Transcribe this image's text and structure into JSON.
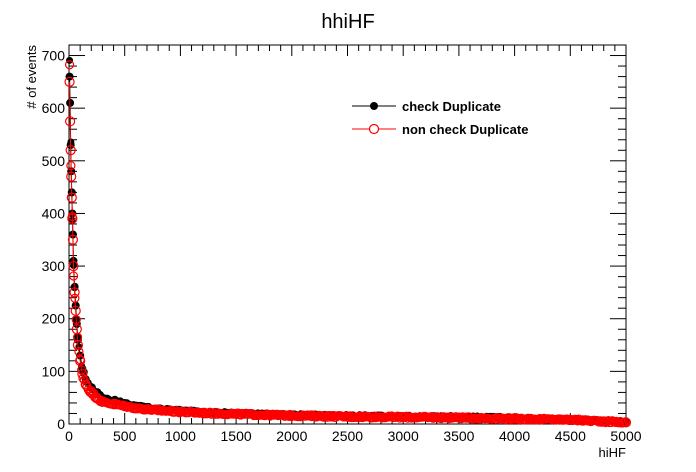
{
  "chart_data": {
    "type": "scatter",
    "title": "hhiHF",
    "xlabel": "hiHF",
    "ylabel": "# of events",
    "xlim": [
      0,
      5000
    ],
    "ylim": [
      0,
      720
    ],
    "xticks": [
      0,
      500,
      1000,
      1500,
      2000,
      2500,
      3000,
      3500,
      4000,
      4500,
      5000
    ],
    "yticks": [
      0,
      100,
      200,
      300,
      400,
      500,
      600,
      700
    ],
    "legend_position": "top-right",
    "grid": false,
    "series": [
      {
        "name": "check Duplicate",
        "color": "#000000",
        "marker": "filled-circle",
        "x": [
          5,
          10,
          15,
          20,
          25,
          30,
          35,
          40,
          50,
          60,
          70,
          80,
          100,
          120,
          150,
          200,
          250,
          300,
          400,
          500,
          600,
          700,
          800,
          1000,
          1200,
          1500,
          1800,
          2000,
          2500,
          3000,
          3500,
          4000,
          4500,
          4800,
          5000
        ],
        "values": [
          660,
          610,
          530,
          480,
          440,
          400,
          360,
          310,
          260,
          225,
          190,
          160,
          130,
          105,
          85,
          70,
          60,
          50,
          45,
          40,
          35,
          32,
          29,
          26,
          23,
          21,
          19,
          18,
          16,
          15,
          14,
          12,
          9,
          6,
          4
        ]
      },
      {
        "name": "non check Duplicate",
        "color": "#ff0000",
        "marker": "open-circle",
        "x": [
          5,
          10,
          15,
          20,
          25,
          30,
          35,
          40,
          50,
          60,
          70,
          80,
          100,
          120,
          150,
          200,
          250,
          300,
          400,
          500,
          600,
          700,
          800,
          1000,
          1200,
          1500,
          1800,
          2000,
          2500,
          3000,
          3500,
          4000,
          4500,
          4800,
          5000
        ],
        "values": [
          650,
          575,
          520,
          470,
          430,
          390,
          350,
          300,
          250,
          215,
          180,
          150,
          120,
          95,
          75,
          60,
          50,
          42,
          38,
          34,
          30,
          28,
          26,
          23,
          21,
          19,
          17,
          16,
          14,
          13,
          12,
          10,
          8,
          5,
          3
        ]
      }
    ]
  }
}
